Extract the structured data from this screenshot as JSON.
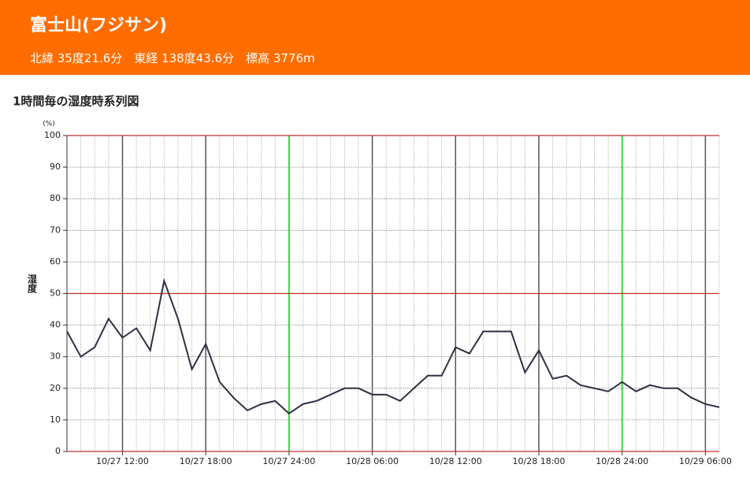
{
  "header": {
    "title": "富士山(フジサン)",
    "subtitle": "北緯 35度21.6分　東経 138度43.6分　標高 3776m"
  },
  "chart_data": {
    "type": "line",
    "title": "1時間毎の湿度時系列図",
    "y_unit": "(%)",
    "y_label": "湿度",
    "categories": [
      null,
      null,
      null,
      null,
      "10/27 12:00",
      null,
      null,
      null,
      null,
      null,
      "10/27 18:00",
      null,
      null,
      null,
      null,
      null,
      "10/27 24:00",
      null,
      null,
      null,
      null,
      null,
      "10/28 06:00",
      null,
      null,
      null,
      null,
      null,
      "10/28 12:00",
      null,
      null,
      null,
      null,
      null,
      "10/28 18:00",
      null,
      null,
      null,
      null,
      null,
      "10/28 24:00",
      null,
      null,
      null,
      null,
      null,
      "10/29 06:00",
      null
    ],
    "series": [
      {
        "name": "湿度",
        "color": "#2d3142",
        "values": [
          38,
          30,
          33,
          42,
          36,
          39,
          32,
          54,
          42,
          26,
          34,
          22,
          17,
          13,
          15,
          16,
          12,
          15,
          16,
          18,
          20,
          20,
          18,
          18,
          16,
          20,
          24,
          24,
          33,
          31,
          38,
          38,
          38,
          25,
          32,
          23,
          24,
          21,
          20,
          19,
          22,
          19,
          21,
          20,
          20,
          17,
          15,
          14
        ]
      }
    ],
    "ylim": [
      0,
      100
    ],
    "yticks": [
      0,
      10,
      20,
      30,
      40,
      50,
      60,
      70,
      80,
      90,
      100
    ],
    "grid": true,
    "reference_lines": [
      0,
      50,
      100
    ],
    "reference_color": "#c0302a",
    "day_line_color": "#33dd33"
  }
}
